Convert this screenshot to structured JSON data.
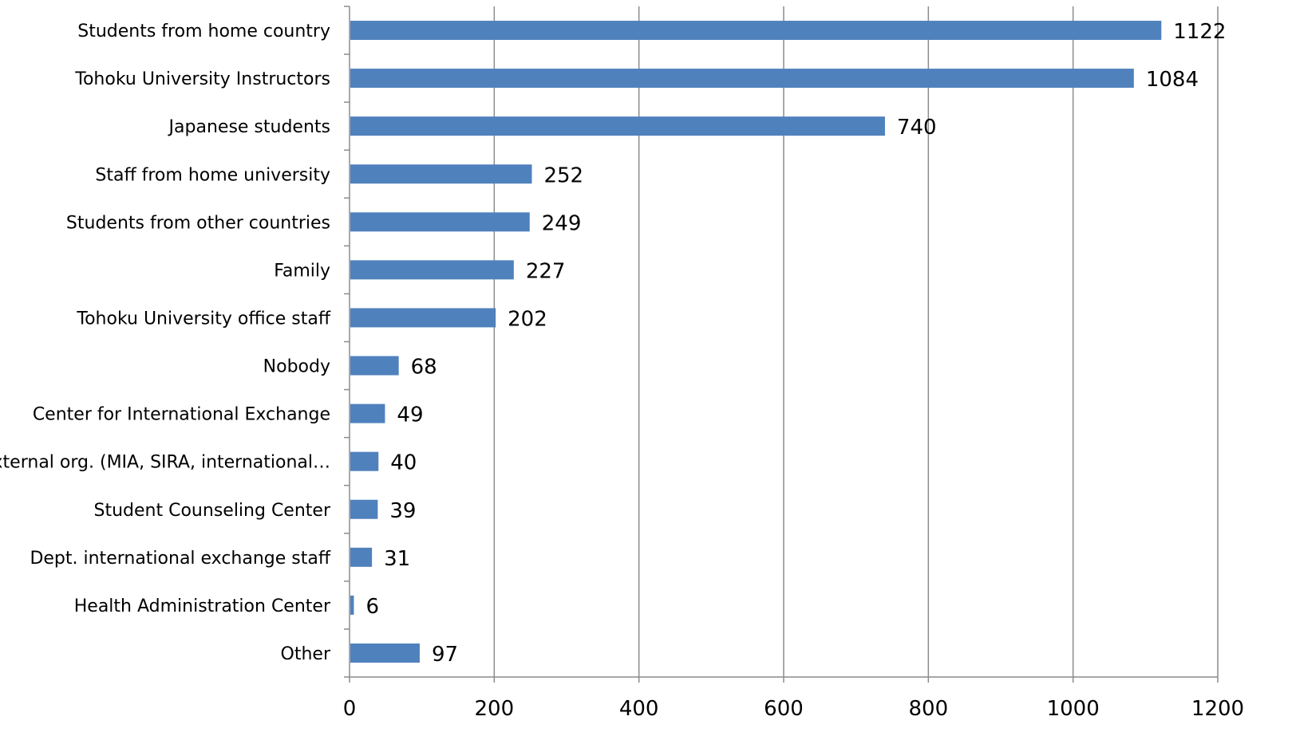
{
  "chart_data": {
    "type": "bar",
    "orientation": "horizontal",
    "categories": [
      "Students from home country",
      "Tohoku University Instructors",
      "Japanese students",
      "Staff from home university",
      "Students from other countries",
      "Family",
      "Tohoku University office staff",
      "Nobody",
      "Center for International Exchange",
      "External org. (MIA, SIRA, international…",
      "Student Counseling Center",
      "Dept. international exchange staff",
      "Health Administration Center",
      "Other"
    ],
    "values": [
      1122,
      1084,
      740,
      252,
      249,
      227,
      202,
      68,
      49,
      40,
      39,
      31,
      6,
      97
    ],
    "data_labels": [
      "1122",
      "1084",
      "740",
      "252",
      "249",
      "227",
      "202",
      "68",
      "49",
      "40",
      "39",
      "31",
      "6",
      "97"
    ],
    "xticks": [
      "0",
      "200",
      "400",
      "600",
      "800",
      "1000",
      "1200"
    ],
    "xlim": [
      0,
      1200
    ],
    "title": "",
    "xlabel": "",
    "ylabel": "",
    "grid": "vertical",
    "legend": "none",
    "bar_color": "#4f81bd"
  }
}
